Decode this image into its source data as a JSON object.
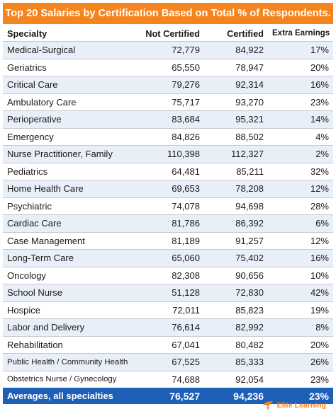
{
  "title": "Top 20 Salaries by Certification Based on Total % of Respondents.",
  "headers": {
    "specialty": "Specialty",
    "not_certified": "Not Certified",
    "certified": "Certified",
    "extra": "Extra Earnings"
  },
  "rows": [
    {
      "specialty": "Medical-Surgical",
      "not_certified": "72,779",
      "certified": "84,922",
      "extra": "17%"
    },
    {
      "specialty": "Geriatrics",
      "not_certified": "65,550",
      "certified": "78,947",
      "extra": "20%"
    },
    {
      "specialty": "Critical Care",
      "not_certified": "79,276",
      "certified": "92,314",
      "extra": "16%"
    },
    {
      "specialty": "Ambulatory Care",
      "not_certified": "75,717",
      "certified": "93,270",
      "extra": "23%"
    },
    {
      "specialty": "Perioperative",
      "not_certified": "83,684",
      "certified": "95,321",
      "extra": "14%"
    },
    {
      "specialty": "Emergency",
      "not_certified": "84,826",
      "certified": "88,502",
      "extra": "4%"
    },
    {
      "specialty": "Nurse Practitioner, Family",
      "not_certified": "110,398",
      "certified": "112,327",
      "extra": "2%"
    },
    {
      "specialty": "Pediatrics",
      "not_certified": "64,481",
      "certified": "85,211",
      "extra": "32%"
    },
    {
      "specialty": "Home Health Care",
      "not_certified": "69,653",
      "certified": "78,208",
      "extra": "12%"
    },
    {
      "specialty": "Psychiatric",
      "not_certified": "74,078",
      "certified": "94,698",
      "extra": "28%"
    },
    {
      "specialty": "Cardiac Care",
      "not_certified": "81,786",
      "certified": "86,392",
      "extra": "6%"
    },
    {
      "specialty": "Case Management",
      "not_certified": "81,189",
      "certified": "91,257",
      "extra": "12%"
    },
    {
      "specialty": "Long-Term Care",
      "not_certified": "65,060",
      "certified": "75,402",
      "extra": "16%"
    },
    {
      "specialty": "Oncology",
      "not_certified": "82,308",
      "certified": "90,656",
      "extra": "10%"
    },
    {
      "specialty": "School Nurse",
      "not_certified": "51,128",
      "certified": "72,830",
      "extra": "42%"
    },
    {
      "specialty": "Hospice",
      "not_certified": "72,011",
      "certified": "85,823",
      "extra": "19%"
    },
    {
      "specialty": "Labor and Delivery",
      "not_certified": "76,614",
      "certified": "82,992",
      "extra": "8%"
    },
    {
      "specialty": "Rehabilitation",
      "not_certified": "67,041",
      "certified": "80,482",
      "extra": "20%"
    },
    {
      "specialty": "Public Health / Community Health",
      "not_certified": "67,525",
      "certified": "85,333",
      "extra": "26%"
    },
    {
      "specialty": "Obstetrics Nurse / Gynecology",
      "not_certified": "74,688",
      "certified": "92,054",
      "extra": "23%"
    }
  ],
  "footer": {
    "label": "Averages, all specialties",
    "not_certified": "76,527",
    "certified": "94,236",
    "extra": "23%"
  },
  "logo_text": "Elite Learning",
  "colors": {
    "accent": "#f5841f",
    "footer": "#1e5fb8",
    "stripe": "#e8eff8"
  }
}
